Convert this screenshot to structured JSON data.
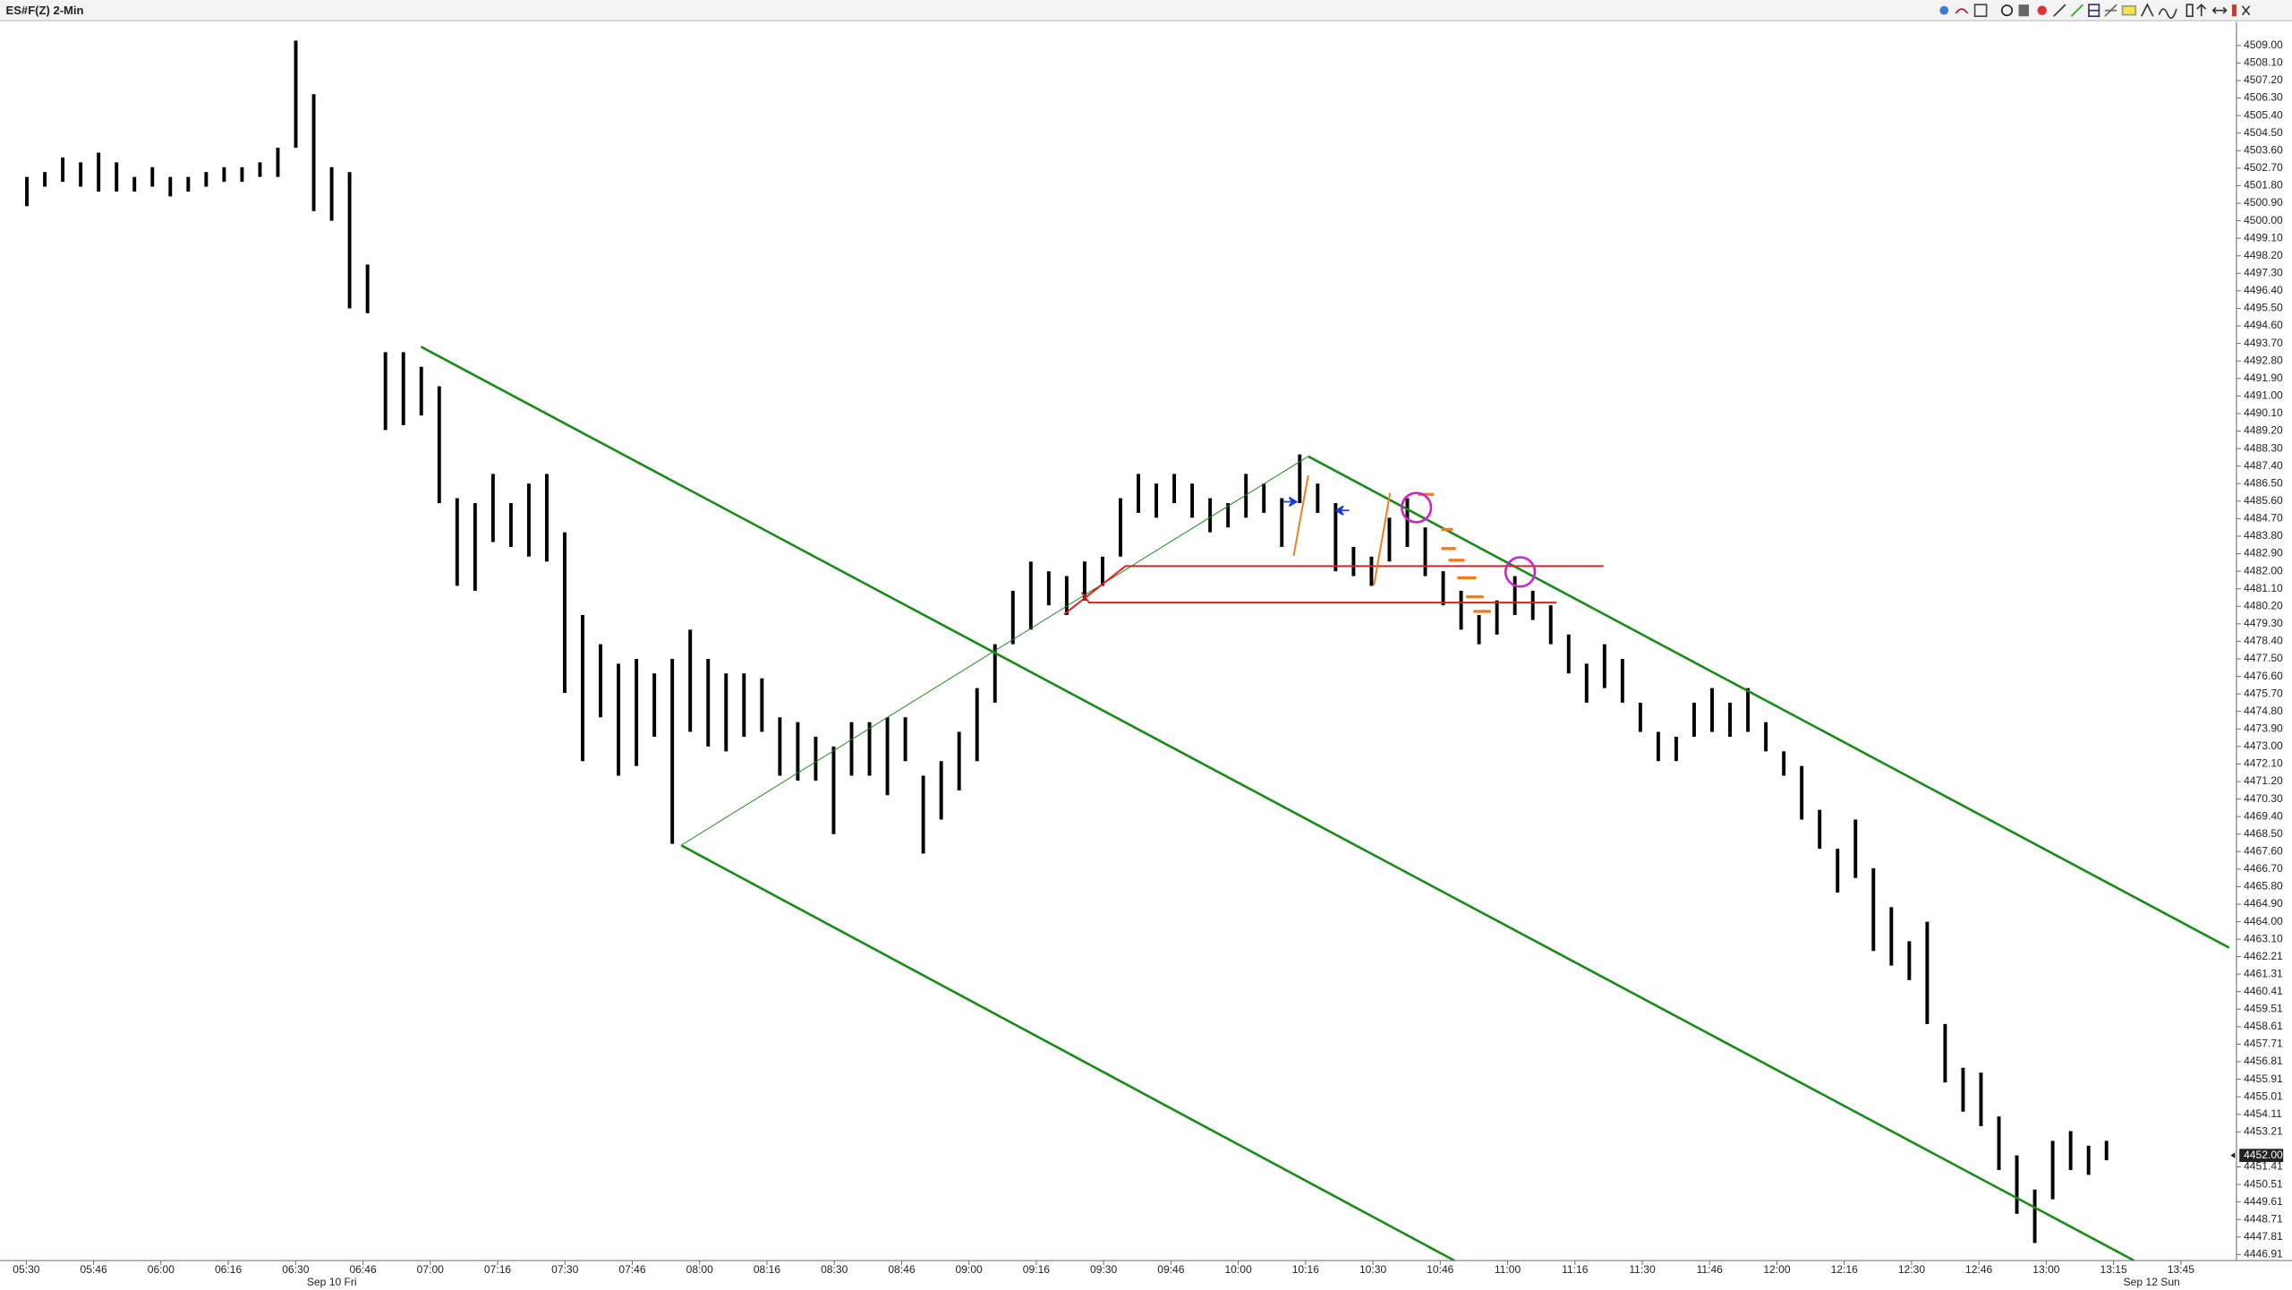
{
  "chart_data": {
    "type": "hlbar",
    "title": "ES#F(Z) 2-Min",
    "xlim": [
      "05:24",
      "13:43"
    ],
    "ylim": [
      4446.6,
      4510.2
    ],
    "x": [
      "05:30",
      "05:34",
      "05:38",
      "05:42",
      "05:46",
      "05:50",
      "05:54",
      "05:58",
      "06:02",
      "06:06",
      "06:10",
      "06:14",
      "06:18",
      "06:22",
      "06:26",
      "06:30",
      "06:34",
      "06:38",
      "06:42",
      "06:46",
      "06:50",
      "06:54",
      "06:58",
      "07:02",
      "07:06",
      "07:10",
      "07:14",
      "07:18",
      "07:22",
      "07:26",
      "07:30",
      "07:34",
      "07:38",
      "07:42",
      "07:46",
      "07:50",
      "07:54",
      "07:58",
      "08:02",
      "08:06",
      "08:10",
      "08:14",
      "08:18",
      "08:22",
      "08:26",
      "08:30",
      "08:34",
      "08:38",
      "08:42",
      "08:46",
      "08:50",
      "08:54",
      "08:58",
      "09:02",
      "09:06",
      "09:10",
      "09:14",
      "09:18",
      "09:22",
      "09:26",
      "09:30",
      "09:34",
      "09:38",
      "09:42",
      "09:46",
      "09:50",
      "09:54",
      "09:58",
      "10:02",
      "10:06",
      "10:10",
      "10:14",
      "10:18",
      "10:22",
      "10:26",
      "10:30",
      "10:34",
      "10:38",
      "10:42",
      "10:46",
      "10:50",
      "10:54",
      "10:58",
      "11:02",
      "11:06",
      "11:10",
      "11:14",
      "11:18",
      "11:22",
      "11:26",
      "11:30",
      "11:34",
      "11:38",
      "11:42",
      "11:46",
      "11:50",
      "11:54",
      "11:58",
      "12:02",
      "12:06",
      "12:10",
      "12:14",
      "12:18",
      "12:22",
      "12:26",
      "12:30",
      "12:34",
      "12:38",
      "12:42",
      "12:46",
      "12:50",
      "12:54",
      "12:58",
      "13:02",
      "13:06",
      "13:10",
      "13:14"
    ],
    "high": [
      4502.25,
      4502.5,
      4503.25,
      4503,
      4503.5,
      4503,
      4502.25,
      4502.75,
      4502.25,
      4502.25,
      4502.5,
      4502.75,
      4502.75,
      4503,
      4503.75,
      4509.25,
      4506.5,
      4502.75,
      4502.5,
      4497.75,
      4493.25,
      4493.25,
      4492.5,
      4491.5,
      4485.75,
      4485.5,
      4487,
      4485.5,
      4486.5,
      4487,
      4484,
      4479.75,
      4478.25,
      4477.25,
      4477.5,
      4476.75,
      4477.5,
      4479,
      4477.5,
      4476.75,
      4476.75,
      4476.5,
      4474.5,
      4474.25,
      4473.5,
      4473,
      4474.25,
      4474.25,
      4474.5,
      4474.5,
      4471.5,
      4472.25,
      4473.75,
      4476,
      4478.25,
      4481,
      4482.5,
      4482,
      4481.75,
      4482.5,
      4482.75,
      4485.75,
      4487,
      4486.5,
      4487,
      4486.5,
      4485.75,
      4485.5,
      4487,
      4486.5,
      4485.75,
      4488,
      4486.5,
      4485.5,
      4483.25,
      4482.75,
      4484.75,
      4485.75,
      4484.25,
      4482,
      4481,
      4479.75,
      4480.5,
      4481.75,
      4481,
      4480.25,
      4478.75,
      4477.25,
      4478.25,
      4477.5,
      4475.25,
      4473.75,
      4473.5,
      4475.25,
      4476,
      4475.25,
      4476,
      4474.25,
      4472.75,
      4472,
      4469.75,
      4467.75,
      4469.25,
      4466.75,
      4464.75,
      4463,
      4464,
      4458.75,
      4456.5,
      4456.25,
      4454,
      4452,
      4450.25,
      4452.75,
      4453.25,
      4452.5,
      4452.75
    ],
    "low": [
      4500.75,
      4501.75,
      4502,
      4501.75,
      4501.5,
      4501.5,
      4501.5,
      4501.75,
      4501.25,
      4501.5,
      4501.75,
      4502,
      4502,
      4502.25,
      4502.25,
      4503.75,
      4500.5,
      4500,
      4495.5,
      4495.25,
      4489.25,
      4489.5,
      4490,
      4485.5,
      4481.25,
      4481,
      4483.5,
      4483.25,
      4482.75,
      4482.5,
      4475.75,
      4472.25,
      4474.5,
      4471.5,
      4472,
      4473.5,
      4468,
      4473.75,
      4473,
      4472.75,
      4473.5,
      4473.75,
      4471.5,
      4471.25,
      4471.25,
      4468.5,
      4471.5,
      4471.5,
      4470.5,
      4472.25,
      4467.5,
      4469.25,
      4470.75,
      4472.25,
      4475.25,
      4478.25,
      4479,
      4480.25,
      4479.75,
      4480.5,
      4481.25,
      4482.75,
      4485,
      4484.75,
      4485.5,
      4484.75,
      4484,
      4484.25,
      4484.75,
      4485,
      4483.25,
      4485.5,
      4485,
      4482,
      4481.75,
      4481.25,
      4482.5,
      4483.25,
      4481.75,
      4480.25,
      4479,
      4478.25,
      4478.75,
      4479.75,
      4479.5,
      4478.25,
      4476.75,
      4475.25,
      4476,
      4475.25,
      4473.75,
      4472.25,
      4472.25,
      4473.5,
      4473.75,
      4473.5,
      4473.75,
      4472.75,
      4471.5,
      4469.25,
      4467.75,
      4465.5,
      4466.25,
      4462.5,
      4461.75,
      4461,
      4458.75,
      4455.75,
      4454.25,
      4453.5,
      4451.25,
      4449,
      4447.5,
      4449.75,
      4451.25,
      4451,
      4451.75
    ],
    "color": "#000000",
    "xticks": [
      "05:30",
      "05:46",
      "06:00",
      "06:16",
      "06:30",
      "06:46",
      "07:00",
      "07:16",
      "07:30",
      "07:46",
      "08:00",
      "08:16",
      "08:30",
      "08:46",
      "09:00",
      "09:16",
      "09:30",
      "09:46",
      "10:00",
      "10:16",
      "10:30",
      "10:46",
      "11:00",
      "11:16",
      "11:30",
      "11:46",
      "12:00",
      "12:16",
      "12:30",
      "12:46",
      "13:00",
      "13:15",
      "13:45"
    ],
    "date_labels": [
      "Sep 10 Fri",
      "Sep 12 Sun"
    ],
    "yticks": [
      {
        "value": 4509,
        "label": "4509.00"
      },
      {
        "value": 4508.1,
        "label": "4508.10"
      },
      {
        "value": 4507.2,
        "label": "4507.20"
      },
      {
        "value": 4506.3,
        "label": "4506.30"
      },
      {
        "value": 4505.4,
        "label": "4505.40"
      },
      {
        "value": 4504.5,
        "label": "4504.50"
      },
      {
        "value": 4503.6,
        "label": "4503.60"
      },
      {
        "value": 4502.7,
        "label": "4502.70"
      },
      {
        "value": 4501.8,
        "label": "4501.80"
      },
      {
        "value": 4500.9,
        "label": "4500.90"
      },
      {
        "value": 4500,
        "label": "4500.00"
      },
      {
        "value": 4499.1,
        "label": "4499.10"
      },
      {
        "value": 4498.2,
        "label": "4498.20"
      },
      {
        "value": 4497.3,
        "label": "4497.30"
      },
      {
        "value": 4496.4,
        "label": "4496.40"
      },
      {
        "value": 4495.5,
        "label": "4495.50"
      },
      {
        "value": 4494.6,
        "label": "4494.60"
      },
      {
        "value": 4493.7,
        "label": "4493.70"
      },
      {
        "value": 4492.8,
        "label": "4492.80"
      },
      {
        "value": 4491.9,
        "label": "4491.90"
      },
      {
        "value": 4491,
        "label": "4491.00"
      },
      {
        "value": 4490.1,
        "label": "4490.10"
      },
      {
        "value": 4489.2,
        "label": "4489.20"
      },
      {
        "value": 4488.3,
        "label": "4488.30"
      },
      {
        "value": 4487.4,
        "label": "4487.40"
      },
      {
        "value": 4486.5,
        "label": "4486.50"
      },
      {
        "value": 4485.6,
        "label": "4485.60"
      },
      {
        "value": 4484.7,
        "label": "4484.70"
      },
      {
        "value": 4483.8,
        "label": "4483.80"
      },
      {
        "value": 4482.9,
        "label": "4482.90"
      },
      {
        "value": 4482,
        "label": "4482.00"
      },
      {
        "value": 4481.1,
        "label": "4481.10"
      },
      {
        "value": 4480.2,
        "label": "4480.20"
      },
      {
        "value": 4479.3,
        "label": "4479.30"
      },
      {
        "value": 4478.4,
        "label": "4478.40"
      },
      {
        "value": 4477.5,
        "label": "4477.50"
      },
      {
        "value": 4476.6,
        "label": "4476.60"
      },
      {
        "value": 4475.7,
        "label": "4475.70"
      },
      {
        "value": 4474.8,
        "label": "4474.80"
      },
      {
        "value": 4473.9,
        "label": "4473.90"
      },
      {
        "value": 4473,
        "label": "4473.00"
      },
      {
        "value": 4472.1,
        "label": "4472.10"
      },
      {
        "value": 4471.2,
        "label": "4471.20"
      },
      {
        "value": 4470.3,
        "label": "4470.30"
      },
      {
        "value": 4469.4,
        "label": "4469.40"
      },
      {
        "value": 4468.5,
        "label": "4468.50"
      },
      {
        "value": 4467.6,
        "label": "4467.60"
      },
      {
        "value": 4466.7,
        "label": "4466.70"
      },
      {
        "value": 4465.8,
        "label": "4465.80"
      },
      {
        "value": 4464.9,
        "label": "4464.90"
      },
      {
        "value": 4464,
        "label": "4464.00"
      },
      {
        "value": 4463.1,
        "label": "4463.10"
      },
      {
        "value": 4462.21,
        "label": "4462.21"
      },
      {
        "value": 4461.31,
        "label": "4461.31"
      },
      {
        "value": 4460.41,
        "label": "4460.41"
      },
      {
        "value": 4459.51,
        "label": "4459.51"
      },
      {
        "value": 4458.61,
        "label": "4458.61"
      },
      {
        "value": 4457.71,
        "label": "4457.71"
      },
      {
        "value": 4456.81,
        "label": "4456.81"
      },
      {
        "value": 4455.91,
        "label": "4455.91"
      },
      {
        "value": 4455.01,
        "label": "4455.01"
      },
      {
        "value": 4454.11,
        "label": "4454.11"
      },
      {
        "value": 4453.21,
        "label": "4453.21"
      },
      {
        "value": 4451.41,
        "label": "4451.41"
      },
      {
        "value": 4450.51,
        "label": "4450.51"
      },
      {
        "value": 4449.61,
        "label": "4449.61"
      },
      {
        "value": 4448.71,
        "label": "4448.71"
      },
      {
        "value": 4447.81,
        "label": "4447.81"
      },
      {
        "value": 4446.91,
        "label": "4446.91"
      }
    ],
    "last_price": {
      "value": 4452,
      "label": "4452.00"
    }
  }
}
